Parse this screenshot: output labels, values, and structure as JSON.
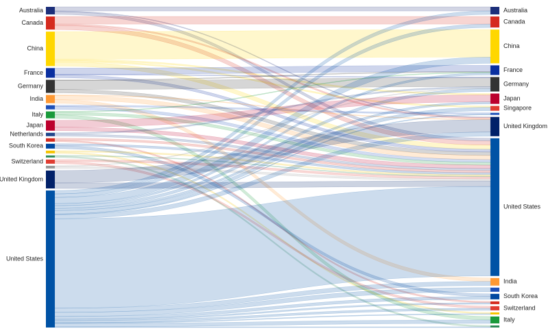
{
  "chart_data": {
    "type": "sankey",
    "left_nodes": [
      {
        "name": "Australia",
        "color": "#1c2f7a"
      },
      {
        "name": "Canada",
        "color": "#d52b1e"
      },
      {
        "name": "China",
        "color": "#ffd700"
      },
      {
        "name": "France",
        "color": "#0a2fa0"
      },
      {
        "name": "Germany",
        "color": "#333333"
      },
      {
        "name": "India",
        "color": "#ff9933"
      },
      {
        "name": null,
        "color": "#1d4fb8"
      },
      {
        "name": "Italy",
        "color": "#1a9a3b"
      },
      {
        "name": "Japan",
        "color": "#bc002d"
      },
      {
        "name": "Netherlands",
        "color": "#21468b"
      },
      {
        "name": null,
        "color": "#d52b1e"
      },
      {
        "name": "South Korea",
        "color": "#0047a0"
      },
      {
        "name": null,
        "color": "#f5c400"
      },
      {
        "name": null,
        "color": "#2e8b57"
      },
      {
        "name": "Switzerland",
        "color": "#e03c31"
      },
      {
        "name": null,
        "color": "#999999"
      },
      {
        "name": "United Kingdom",
        "color": "#012169"
      },
      {
        "name": "United States",
        "color": "#0052a5"
      }
    ],
    "right_nodes": [
      {
        "name": "Australia",
        "color": "#1c2f7a"
      },
      {
        "name": "Canada",
        "color": "#d52b1e"
      },
      {
        "name": "China",
        "color": "#ffd700"
      },
      {
        "name": "France",
        "color": "#0a2fa0"
      },
      {
        "name": "Germany",
        "color": "#333333"
      },
      {
        "name": "Japan",
        "color": "#bc002d"
      },
      {
        "name": "Singapore",
        "color": "#e03c31"
      },
      {
        "name": null,
        "color": "#1d4fb8"
      },
      {
        "name": "United Kingdom",
        "color": "#012169"
      },
      {
        "name": "United States",
        "color": "#0052a5"
      },
      {
        "name": "India",
        "color": "#ff9933"
      },
      {
        "name": null,
        "color": "#1d4fb8"
      },
      {
        "name": "South Korea",
        "color": "#0047a0"
      },
      {
        "name": null,
        "color": "#d52b1e"
      },
      {
        "name": "Switzerland",
        "color": "#e03c31"
      },
      {
        "name": null,
        "color": "#f5c400"
      },
      {
        "name": "Italy",
        "color": "#1a9a3b"
      },
      {
        "name": null,
        "color": "#2e8b57"
      }
    ],
    "links": [
      {
        "source": 0,
        "target": 0,
        "value": 6
      },
      {
        "source": 0,
        "target": 9,
        "value": 4
      },
      {
        "source": 0,
        "target": 8,
        "value": 1
      },
      {
        "source": 1,
        "target": 1,
        "value": 11
      },
      {
        "source": 1,
        "target": 9,
        "value": 6
      },
      {
        "source": 1,
        "target": 8,
        "value": 2
      },
      {
        "source": 2,
        "target": 2,
        "value": 40
      },
      {
        "source": 2,
        "target": 9,
        "value": 6
      },
      {
        "source": 2,
        "target": 5,
        "value": 2
      },
      {
        "source": 2,
        "target": 6,
        "value": 2
      },
      {
        "source": 3,
        "target": 3,
        "value": 9
      },
      {
        "source": 3,
        "target": 9,
        "value": 4
      },
      {
        "source": 3,
        "target": 4,
        "value": 1
      },
      {
        "source": 4,
        "target": 4,
        "value": 13
      },
      {
        "source": 4,
        "target": 9,
        "value": 5
      },
      {
        "source": 4,
        "target": 3,
        "value": 1
      },
      {
        "source": 5,
        "target": 10,
        "value": 5
      },
      {
        "source": 5,
        "target": 9,
        "value": 6
      },
      {
        "source": 5,
        "target": 8,
        "value": 1
      },
      {
        "source": 6,
        "target": 9,
        "value": 4
      },
      {
        "source": 6,
        "target": 7,
        "value": 2
      },
      {
        "source": 7,
        "target": 16,
        "value": 5
      },
      {
        "source": 7,
        "target": 9,
        "value": 4
      },
      {
        "source": 7,
        "target": 3,
        "value": 1
      },
      {
        "source": 8,
        "target": 5,
        "value": 10
      },
      {
        "source": 8,
        "target": 9,
        "value": 5
      },
      {
        "source": 9,
        "target": 9,
        "value": 3
      },
      {
        "source": 9,
        "target": 4,
        "value": 2
      },
      {
        "source": 10,
        "target": 9,
        "value": 3
      },
      {
        "source": 10,
        "target": 13,
        "value": 2
      },
      {
        "source": 11,
        "target": 12,
        "value": 4
      },
      {
        "source": 11,
        "target": 9,
        "value": 3
      },
      {
        "source": 12,
        "target": 15,
        "value": 2
      },
      {
        "source": 12,
        "target": 9,
        "value": 2
      },
      {
        "source": 13,
        "target": 17,
        "value": 2
      },
      {
        "source": 13,
        "target": 9,
        "value": 1
      },
      {
        "source": 14,
        "target": 14,
        "value": 3
      },
      {
        "source": 14,
        "target": 9,
        "value": 3
      },
      {
        "source": 15,
        "target": 9,
        "value": 3
      },
      {
        "source": 15,
        "target": 4,
        "value": 1
      },
      {
        "source": 16,
        "target": 8,
        "value": 18
      },
      {
        "source": 16,
        "target": 9,
        "value": 8
      },
      {
        "source": 17,
        "target": 9,
        "value": 130
      },
      {
        "source": 17,
        "target": 2,
        "value": 9
      },
      {
        "source": 17,
        "target": 8,
        "value": 6
      },
      {
        "source": 17,
        "target": 1,
        "value": 5
      },
      {
        "source": 17,
        "target": 4,
        "value": 4
      },
      {
        "source": 17,
        "target": 3,
        "value": 3
      },
      {
        "source": 17,
        "target": 5,
        "value": 3
      },
      {
        "source": 17,
        "target": 0,
        "value": 5
      },
      {
        "source": 17,
        "target": 6,
        "value": 5
      },
      {
        "source": 17,
        "target": 7,
        "value": 1
      },
      {
        "source": 17,
        "target": 10,
        "value": 6
      },
      {
        "source": 17,
        "target": 11,
        "value": 6
      },
      {
        "source": 17,
        "target": 12,
        "value": 4
      },
      {
        "source": 17,
        "target": 13,
        "value": 2
      },
      {
        "source": 17,
        "target": 14,
        "value": 3
      },
      {
        "source": 17,
        "target": 15,
        "value": 1
      },
      {
        "source": 17,
        "target": 16,
        "value": 5
      },
      {
        "source": 17,
        "target": 17,
        "value": 1
      }
    ]
  }
}
